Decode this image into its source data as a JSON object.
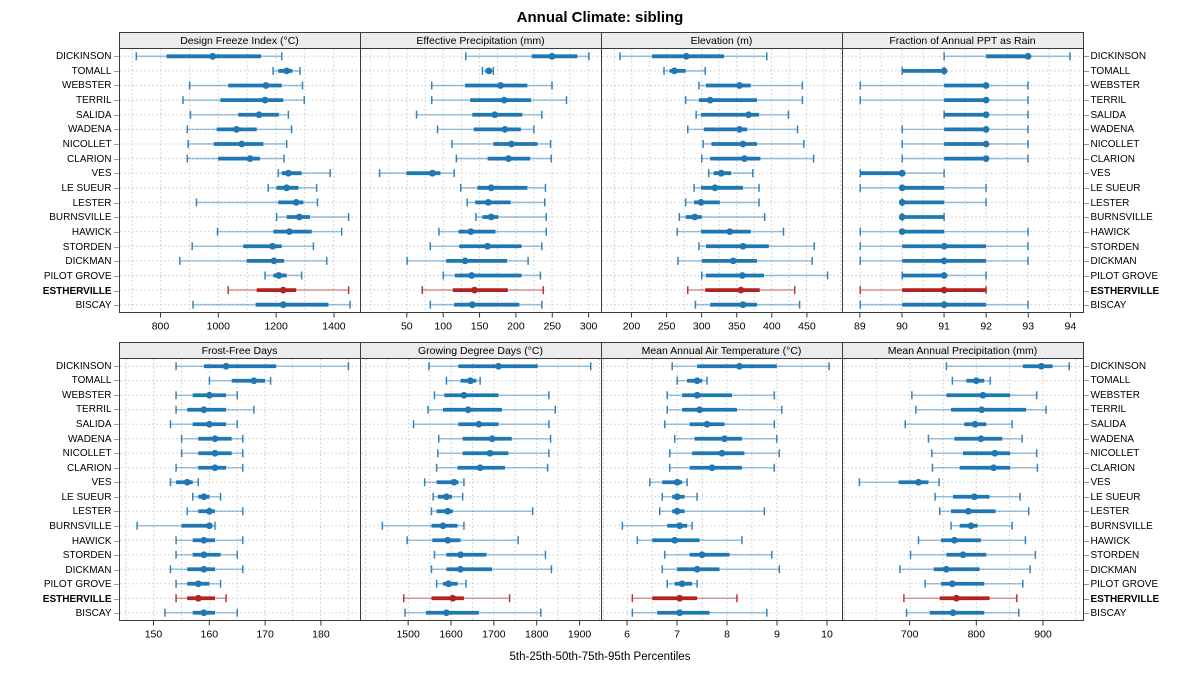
{
  "title": "Annual Climate: sibling",
  "caption": "5th-25th-50th-75th-95th Percentiles",
  "percentile_levels": [
    5,
    25,
    50,
    75,
    95
  ],
  "stations": [
    "DICKINSON",
    "TOMALL",
    "WEBSTER",
    "TERRIL",
    "SALIDA",
    "WADENA",
    "NICOLLET",
    "CLARION",
    "VES",
    "LE SUEUR",
    "LESTER",
    "BURNSVILLE",
    "HAWICK",
    "STORDEN",
    "DICKMAN",
    "PILOT GROVE",
    "ESTHERVILLE",
    "BISCAY"
  ],
  "highlight_station": "ESTHERVILLE",
  "colors": {
    "series": "#1f77b4",
    "highlight": "#b22222",
    "strip_bg": "#ececec",
    "grid": "#c9c9c9",
    "border": "#3a3a3a"
  },
  "chart_data": [
    {
      "type": "dot-whisker",
      "title": "Design Freeze Index (°C)",
      "xlim": [
        660,
        1490
      ],
      "ticks": [
        800,
        1000,
        1200,
        1400
      ],
      "values": [
        [
          715,
          820,
          980,
          1148,
          1220
        ],
        [
          1190,
          1208,
          1237,
          1257,
          1283
        ],
        [
          900,
          1034,
          1165,
          1220,
          1292
        ],
        [
          877,
          1007,
          1162,
          1225,
          1298
        ],
        [
          903,
          1069,
          1141,
          1210,
          1243
        ],
        [
          892,
          994,
          1063,
          1133,
          1254
        ],
        [
          895,
          984,
          1081,
          1156,
          1237
        ],
        [
          892,
          999,
          1110,
          1144,
          1228
        ],
        [
          1208,
          1220,
          1243,
          1289,
          1388
        ],
        [
          1173,
          1202,
          1237,
          1278,
          1341
        ],
        [
          924,
          1208,
          1270,
          1295,
          1344
        ],
        [
          1202,
          1237,
          1281,
          1318,
          1452
        ],
        [
          997,
          1191,
          1246,
          1324,
          1428
        ],
        [
          909,
          1086,
          1188,
          1220,
          1330
        ],
        [
          866,
          1098,
          1193,
          1228,
          1376
        ],
        [
          1162,
          1191,
          1210,
          1237,
          1289
        ],
        [
          1034,
          1133,
          1225,
          1270,
          1452
        ],
        [
          912,
          1129,
          1225,
          1382,
          1457
        ]
      ]
    },
    {
      "type": "dot-whisker",
      "title": "Effective Precipitation (mm)",
      "xlim": [
        -13,
        317
      ],
      "ticks": [
        50,
        100,
        150,
        200,
        250,
        300
      ],
      "values": [
        [
          131,
          222,
          250,
          285,
          301
        ],
        [
          154,
          158,
          163,
          166,
          169
        ],
        [
          84,
          130,
          179,
          216,
          250
        ],
        [
          84,
          137,
          184,
          221,
          270
        ],
        [
          63,
          140,
          171,
          209,
          236
        ],
        [
          92,
          142,
          185,
          207,
          225
        ],
        [
          112,
          169,
          194,
          230,
          248
        ],
        [
          118,
          161,
          190,
          220,
          249
        ],
        [
          12,
          49,
          85,
          96,
          115
        ],
        [
          124,
          147,
          166,
          216,
          241
        ],
        [
          133,
          144,
          162,
          193,
          240
        ],
        [
          145,
          154,
          166,
          176,
          242
        ],
        [
          94,
          121,
          138,
          172,
          242
        ],
        [
          82,
          122,
          161,
          208,
          236
        ],
        [
          50,
          104,
          130,
          188,
          217
        ],
        [
          100,
          116,
          139,
          208,
          234
        ],
        [
          71,
          113,
          143,
          189,
          238
        ],
        [
          82,
          115,
          140,
          205,
          236
        ]
      ]
    },
    {
      "type": "dot-whisker",
      "title": "Elevation (m)",
      "xlim": [
        158,
        500
      ],
      "ticks": [
        200,
        250,
        300,
        350,
        400,
        450
      ],
      "values": [
        [
          183,
          229,
          278,
          332,
          393
        ],
        [
          246,
          254,
          261,
          277,
          305
        ],
        [
          296,
          306,
          354,
          370,
          444
        ],
        [
          277,
          296,
          312,
          379,
          444
        ],
        [
          292,
          299,
          367,
          382,
          424
        ],
        [
          280,
          303,
          354,
          365,
          437
        ],
        [
          302,
          314,
          359,
          379,
          446
        ],
        [
          300,
          312,
          361,
          384,
          460
        ],
        [
          310,
          317,
          328,
          342,
          373
        ],
        [
          289,
          299,
          319,
          359,
          382
        ],
        [
          277,
          289,
          299,
          326,
          382
        ],
        [
          268,
          277,
          290,
          300,
          390
        ],
        [
          265,
          299,
          340,
          370,
          417
        ],
        [
          296,
          306,
          359,
          396,
          461
        ],
        [
          266,
          300,
          345,
          379,
          458
        ],
        [
          300,
          306,
          358,
          389,
          480
        ],
        [
          280,
          305,
          356,
          383,
          433
        ],
        [
          291,
          312,
          359,
          379,
          440
        ]
      ]
    },
    {
      "type": "dot-whisker",
      "title": "Fraction of Annual PPT as Rain",
      "xlim": [
        88.6,
        94.3
      ],
      "ticks": [
        89,
        90,
        91,
        92,
        93,
        94
      ],
      "values": [
        [
          91,
          92,
          93,
          93,
          94
        ],
        [
          90,
          90,
          91,
          91,
          91
        ],
        [
          89,
          91,
          92,
          92,
          93
        ],
        [
          89,
          91,
          92,
          92,
          93
        ],
        [
          91,
          91,
          92,
          92,
          93
        ],
        [
          90,
          91,
          92,
          92,
          93
        ],
        [
          90,
          91,
          92,
          92,
          93
        ],
        [
          90,
          91,
          92,
          92,
          93
        ],
        [
          89,
          89,
          90,
          90,
          91
        ],
        [
          89,
          90,
          90,
          91,
          92
        ],
        [
          90,
          90,
          90,
          91,
          92
        ],
        [
          90,
          90,
          90,
          91,
          91
        ],
        [
          89,
          90,
          90,
          91,
          93
        ],
        [
          89,
          90,
          91,
          92,
          93
        ],
        [
          89,
          90,
          91,
          92,
          93
        ],
        [
          90,
          90,
          91,
          91,
          92
        ],
        [
          89,
          90,
          91,
          92,
          92
        ],
        [
          89,
          90,
          91,
          92,
          93
        ]
      ]
    },
    {
      "type": "dot-whisker",
      "title": "Frost-Free Days",
      "xlim": [
        144,
        187
      ],
      "ticks": [
        150,
        160,
        170,
        180
      ],
      "values": [
        [
          154,
          159,
          163,
          172,
          185
        ],
        [
          160,
          164,
          168,
          170,
          171
        ],
        [
          154,
          157,
          160,
          163,
          165
        ],
        [
          154,
          156,
          159,
          163,
          168
        ],
        [
          153,
          157,
          160,
          163,
          165
        ],
        [
          155,
          158,
          161,
          164,
          166
        ],
        [
          155,
          158,
          161,
          164,
          166
        ],
        [
          154,
          158,
          161,
          163,
          166
        ],
        [
          153,
          154,
          156,
          157,
          158
        ],
        [
          157,
          158,
          159,
          160,
          162
        ],
        [
          156,
          158,
          160,
          161,
          166
        ],
        [
          147,
          155,
          160,
          160,
          161
        ],
        [
          154,
          157,
          159,
          161,
          166
        ],
        [
          154,
          157,
          159,
          162,
          165
        ],
        [
          153,
          156,
          159,
          161,
          166
        ],
        [
          154,
          156,
          158,
          160,
          162
        ],
        [
          154,
          156,
          158,
          161,
          163
        ],
        [
          152,
          157,
          159,
          161,
          165
        ]
      ]
    },
    {
      "type": "dot-whisker",
      "title": "Growing Degree Days (°C)",
      "xlim": [
        1390,
        1950
      ],
      "ticks": [
        1500,
        1600,
        1700,
        1800,
        1900
      ],
      "values": [
        [
          1548,
          1617,
          1711,
          1803,
          1927
        ],
        [
          1589,
          1622,
          1645,
          1659,
          1668
        ],
        [
          1561,
          1584,
          1630,
          1711,
          1829
        ],
        [
          1546,
          1581,
          1640,
          1719,
          1844
        ],
        [
          1512,
          1617,
          1665,
          1711,
          1829
        ],
        [
          1571,
          1627,
          1696,
          1742,
          1833
        ],
        [
          1569,
          1627,
          1691,
          1734,
          1829
        ],
        [
          1566,
          1615,
          1668,
          1726,
          1826
        ],
        [
          1538,
          1566,
          1607,
          1617,
          1630
        ],
        [
          1558,
          1569,
          1589,
          1602,
          1627
        ],
        [
          1554,
          1566,
          1592,
          1604,
          1791
        ],
        [
          1439,
          1554,
          1581,
          1615,
          1630
        ],
        [
          1497,
          1556,
          1592,
          1622,
          1757
        ],
        [
          1561,
          1589,
          1622,
          1683,
          1821
        ],
        [
          1554,
          1589,
          1622,
          1696,
          1835
        ],
        [
          1566,
          1581,
          1594,
          1615,
          1635
        ],
        [
          1489,
          1554,
          1604,
          1630,
          1737
        ],
        [
          1492,
          1541,
          1589,
          1665,
          1810
        ]
      ]
    },
    {
      "type": "dot-whisker",
      "title": "Mean Annual Air Temperature (°C)",
      "xlim": [
        5.5,
        10.3
      ],
      "ticks": [
        6,
        7,
        8,
        9,
        10
      ],
      "values": [
        [
          6.9,
          7.4,
          8.25,
          9.0,
          10.05
        ],
        [
          7.0,
          7.2,
          7.4,
          7.5,
          7.6
        ],
        [
          6.8,
          7.1,
          7.4,
          8.1,
          8.95
        ],
        [
          6.8,
          7.1,
          7.45,
          8.2,
          9.1
        ],
        [
          6.75,
          7.25,
          7.6,
          7.95,
          8.95
        ],
        [
          6.95,
          7.35,
          7.95,
          8.3,
          9.0
        ],
        [
          6.85,
          7.3,
          7.9,
          8.35,
          9.05
        ],
        [
          6.85,
          7.25,
          7.7,
          8.3,
          8.95
        ],
        [
          6.45,
          6.7,
          7.0,
          7.1,
          7.2
        ],
        [
          6.7,
          6.9,
          7.0,
          7.15,
          7.4
        ],
        [
          6.65,
          6.9,
          7.0,
          7.15,
          8.75
        ],
        [
          5.9,
          6.8,
          7.05,
          7.2,
          7.3
        ],
        [
          6.2,
          6.5,
          6.95,
          7.45,
          8.3
        ],
        [
          6.75,
          7.25,
          7.5,
          8.05,
          8.9
        ],
        [
          6.7,
          7.0,
          7.4,
          7.85,
          9.05
        ],
        [
          6.8,
          6.95,
          7.1,
          7.3,
          7.4
        ],
        [
          6.1,
          6.5,
          7.05,
          7.4,
          8.2
        ],
        [
          6.1,
          6.6,
          7.05,
          7.65,
          8.8
        ]
      ]
    },
    {
      "type": "dot-whisker",
      "title": "Mean Annual Precipitation (mm)",
      "xlim": [
        600,
        960
      ],
      "ticks": [
        700,
        800,
        900
      ],
      "values": [
        [
          755,
          870,
          898,
          915,
          940
        ],
        [
          764,
          785,
          800,
          812,
          821
        ],
        [
          703,
          755,
          810,
          851,
          891
        ],
        [
          709,
          762,
          808,
          875,
          905
        ],
        [
          693,
          782,
          798,
          815,
          854
        ],
        [
          728,
          767,
          807,
          839,
          869
        ],
        [
          733,
          780,
          828,
          851,
          891
        ],
        [
          734,
          775,
          826,
          851,
          892
        ],
        [
          624,
          683,
          713,
          728,
          744
        ],
        [
          738,
          765,
          797,
          820,
          866
        ],
        [
          745,
          762,
          788,
          829,
          879
        ],
        [
          762,
          775,
          792,
          802,
          854
        ],
        [
          713,
          747,
          767,
          807,
          874
        ],
        [
          701,
          755,
          780,
          815,
          889
        ],
        [
          685,
          736,
          755,
          805,
          881
        ],
        [
          723,
          747,
          764,
          812,
          870
        ],
        [
          691,
          745,
          770,
          820,
          861
        ],
        [
          695,
          730,
          765,
          812,
          864
        ]
      ]
    }
  ]
}
